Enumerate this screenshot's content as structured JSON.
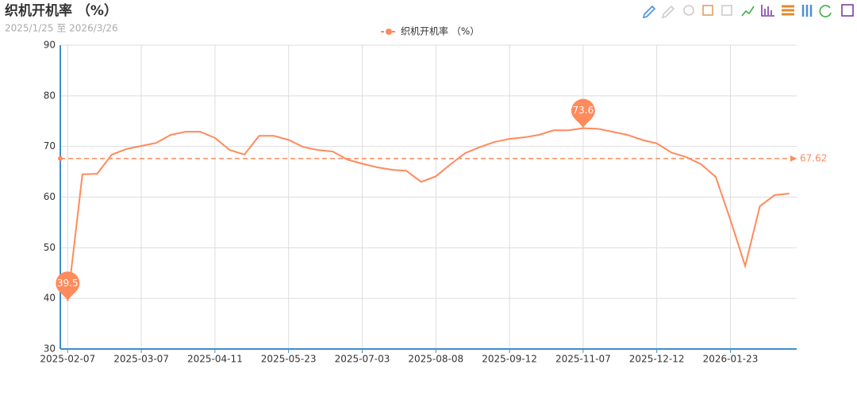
{
  "chart_data": {
    "type": "line",
    "title": "织机开机率 （%）",
    "subtitle": "2025/1/25 至 2026/3/26",
    "categories": [
      "2025-02-07",
      null,
      null,
      null,
      null,
      "2025-03-07",
      null,
      null,
      null,
      null,
      "2025-04-11",
      null,
      null,
      null,
      null,
      "2025-05-23",
      null,
      null,
      null,
      null,
      "2025-07-03",
      null,
      null,
      null,
      null,
      "2025-08-08",
      null,
      null,
      null,
      null,
      "2025-09-12",
      null,
      null,
      null,
      null,
      "2025-11-07",
      null,
      null,
      null,
      null,
      "2025-12-12",
      null,
      null,
      null,
      null,
      "2026-01-23",
      null,
      null,
      null,
      null
    ],
    "series": [
      {
        "name": "织机开机率 （%）",
        "color": "#ff8a5c",
        "values": [
          39.5,
          64.5,
          64.6,
          68.4,
          69.5,
          70.1,
          70.7,
          72.3,
          72.9,
          72.9,
          71.7,
          69.3,
          68.4,
          72.1,
          72.1,
          71.3,
          69.9,
          69.3,
          69.0,
          67.4,
          66.6,
          65.9,
          65.4,
          65.2,
          63.0,
          64.1,
          66.5,
          68.7,
          69.9,
          70.9,
          71.5,
          71.8,
          72.3,
          73.2,
          73.2,
          73.6,
          73.5,
          72.9,
          72.3,
          71.3,
          70.6,
          68.8,
          67.9,
          66.5,
          64.0,
          55.5,
          46.4,
          58.2,
          60.4,
          60.7
        ]
      }
    ],
    "mean_line": 67.62,
    "ylim": [
      30,
      90
    ],
    "yticks": [
      30,
      40,
      50,
      60,
      70,
      80,
      90
    ],
    "grid": true
  }
}
